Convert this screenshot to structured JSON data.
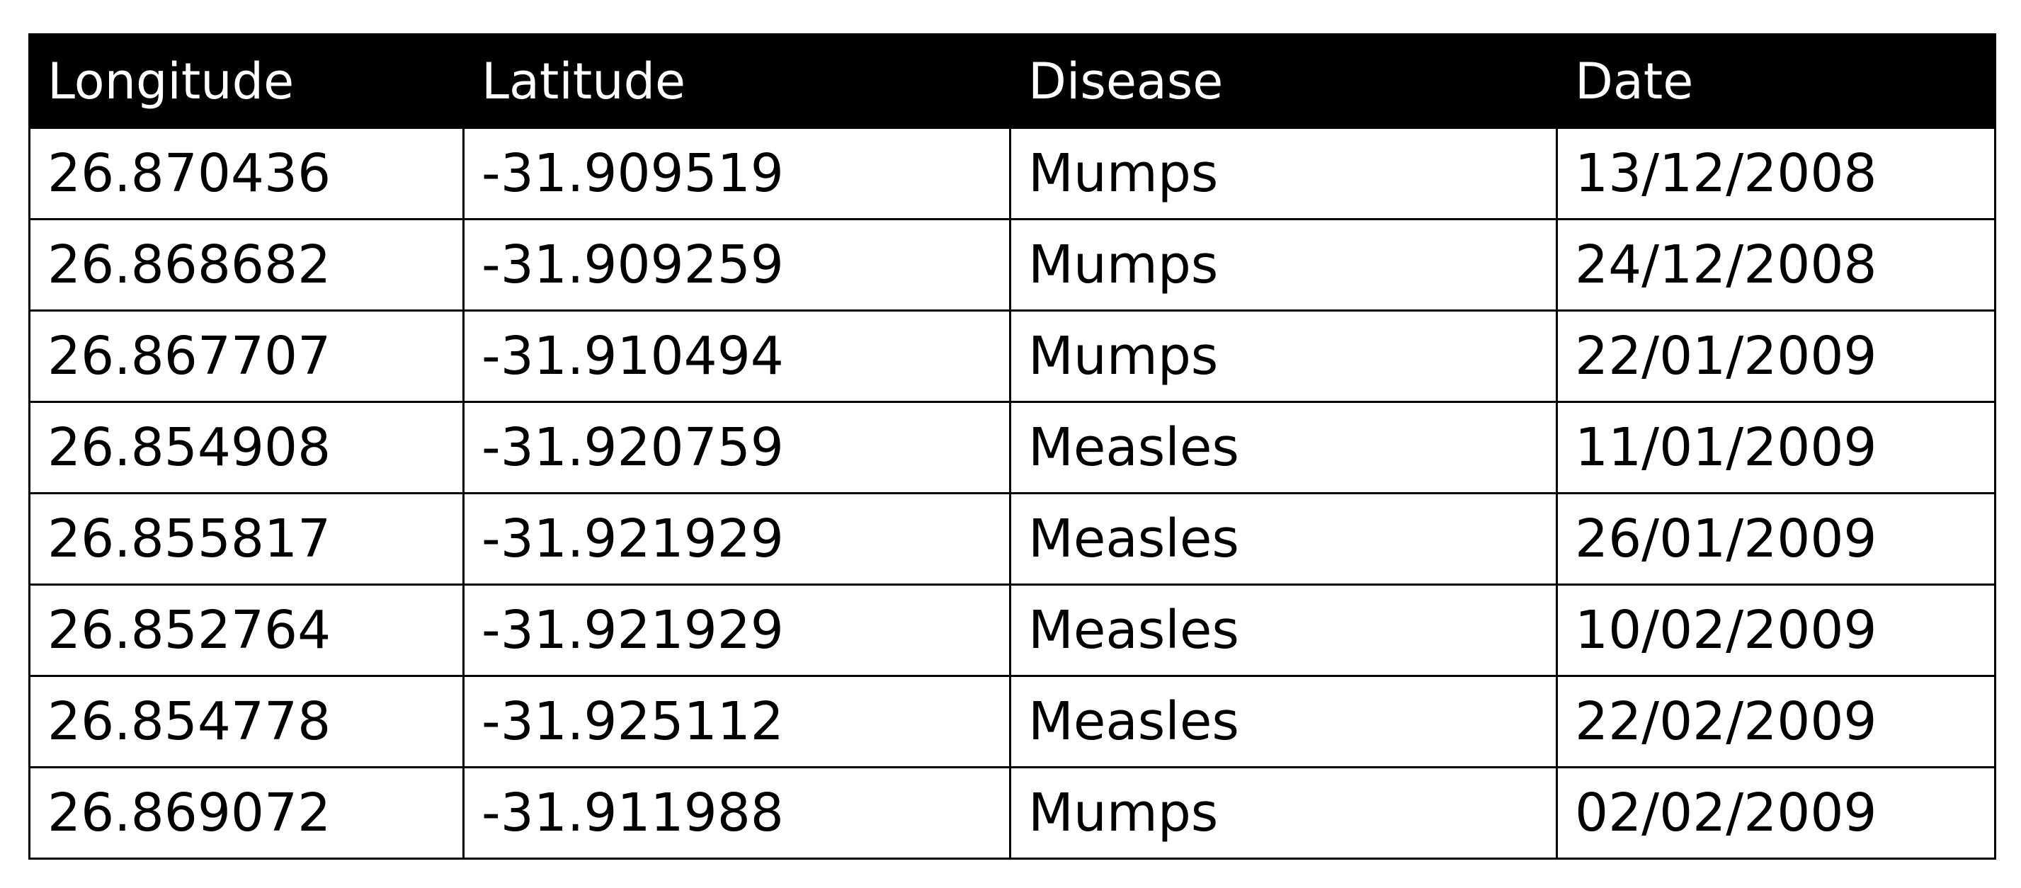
{
  "table": {
    "headers": [
      "Longitude",
      "Latitude",
      "Disease",
      "Date"
    ],
    "rows": [
      [
        "26.870436",
        "-31.909519",
        "Mumps",
        "13/12/2008"
      ],
      [
        "26.868682",
        "-31.909259",
        "Mumps",
        "24/12/2008"
      ],
      [
        "26.867707",
        "-31.910494",
        "Mumps",
        "22/01/2009"
      ],
      [
        "26.854908",
        "-31.920759",
        "Measles",
        "11/01/2009"
      ],
      [
        "26.855817",
        "-31.921929",
        "Measles",
        "26/01/2009"
      ],
      [
        "26.852764",
        "-31.921929",
        "Measles",
        "10/02/2009"
      ],
      [
        "26.854778",
        "-31.925112",
        "Measles",
        "22/02/2009"
      ],
      [
        "26.869072",
        "-31.911988",
        "Mumps",
        "02/02/2009"
      ]
    ]
  }
}
